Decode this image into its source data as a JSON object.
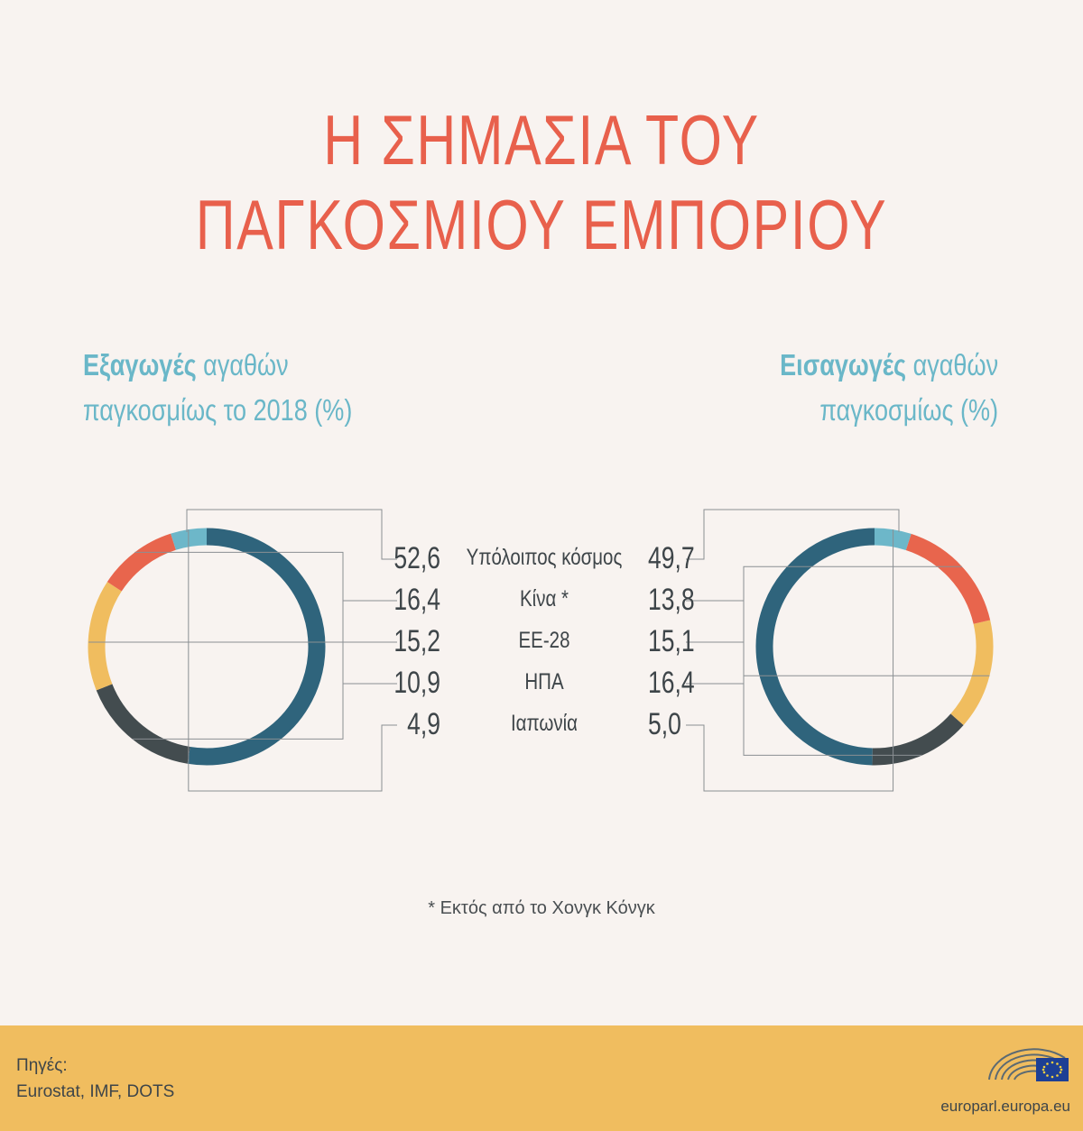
{
  "title_line1": "Η ΣΗΜΑΣΙΑ ΤΟΥ",
  "title_line2": "ΠΑΓΚΟΣΜΙΟΥ ΕΜΠΟΡΙΟΥ",
  "exports_title": {
    "bold": "Εξαγωγές",
    "rest": " αγαθών",
    "line2": "παγκοσμίως το 2018 (%)"
  },
  "imports_title": {
    "bold": "Εισαγωγές",
    "rest": " αγαθών",
    "line2": "παγκοσμίως (%)"
  },
  "footnote": "* Εκτός από το Χονγκ Κόνγκ",
  "sources_label": "Πηγές:",
  "sources": "Eurostat, IMF, DOTS",
  "site": "europarl.europa.eu",
  "colors": {
    "background": "#f8f3f0",
    "title": "#e8604c",
    "subtitle": "#6ab7c8",
    "footer": "#f0bd5f"
  },
  "chart_data": {
    "type": "donut",
    "categories": [
      "Υπόλοιπος κόσμος",
      "Κίνα *",
      "ΕΕ-28",
      "ΗΠΑ",
      "Ιαπωνία"
    ],
    "category_colors": [
      "#2f647c",
      "#434c4f",
      "#f0bd5f",
      "#e8654d",
      "#6db7c9"
    ],
    "series": [
      {
        "values": [
          52.6,
          16.4,
          15.2,
          10.9,
          4.9
        ],
        "labels": [
          "52,6",
          "16,4",
          "15,2",
          "10,9",
          "4,9"
        ]
      },
      {
        "values": [
          49.7,
          13.8,
          15.1,
          16.4,
          5.0
        ],
        "labels": [
          "49,7",
          "13,8",
          "15,1",
          "16,4",
          "5,0"
        ]
      }
    ]
  }
}
